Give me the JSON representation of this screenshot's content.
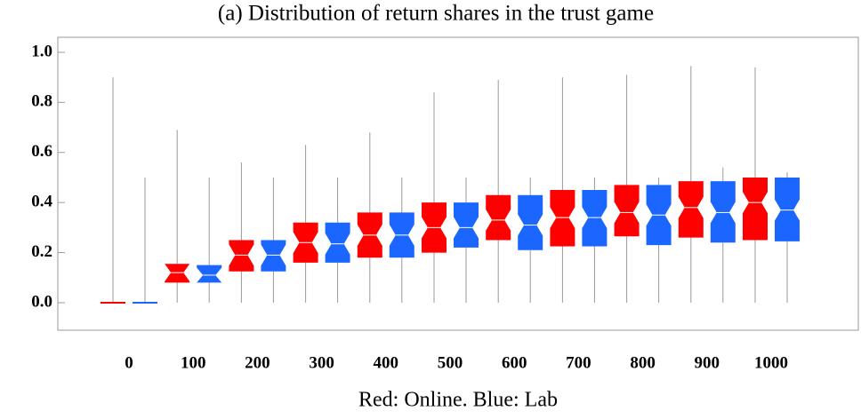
{
  "chart_data": {
    "type": "boxplot",
    "title": "(a) Distribution of return shares in the trust game",
    "x_label": "Red: Online. Blue: Lab",
    "categories": [
      "0",
      "100",
      "200",
      "300",
      "400",
      "500",
      "600",
      "700",
      "800",
      "900",
      "1000"
    ],
    "ylim": [
      -0.11,
      1.06
    ],
    "yticks": [
      {
        "value": 0,
        "label": "0.0"
      },
      {
        "value": 0.2,
        "label": "0.2"
      },
      {
        "value": 0.4,
        "label": "0.4"
      },
      {
        "value": 0.6,
        "label": "0.6"
      },
      {
        "value": 0.8,
        "label": "0.8"
      },
      {
        "value": 1,
        "label": "1.0"
      }
    ],
    "series": [
      {
        "color": "#ff0000",
        "min": [
          0,
          0,
          0,
          0,
          0,
          0,
          0,
          0,
          0,
          0,
          0
        ],
        "q1": [
          0,
          0.08,
          0.125,
          0.16,
          0.18,
          0.2,
          0.25,
          0.225,
          0.265,
          0.26,
          0.25
        ],
        "median": [
          0,
          0.12,
          0.19,
          0.24,
          0.27,
          0.3,
          0.33,
          0.34,
          0.36,
          0.38,
          0.4
        ],
        "q3": [
          0,
          0.155,
          0.25,
          0.32,
          0.36,
          0.4,
          0.43,
          0.45,
          0.47,
          0.485,
          0.5
        ],
        "max": [
          0.9,
          0.69,
          0.56,
          0.63,
          0.68,
          0.84,
          0.89,
          0.9,
          0.91,
          0.945,
          0.94
        ]
      },
      {
        "color": "#1a66ff",
        "min": [
          0,
          0,
          0,
          0,
          0,
          0,
          0,
          0,
          0,
          0,
          0
        ],
        "q1": [
          0,
          0.08,
          0.125,
          0.16,
          0.18,
          0.22,
          0.21,
          0.225,
          0.23,
          0.24,
          0.245
        ],
        "median": [
          0,
          0.11,
          0.19,
          0.235,
          0.27,
          0.3,
          0.31,
          0.34,
          0.35,
          0.36,
          0.37
        ],
        "q3": [
          0,
          0.15,
          0.25,
          0.32,
          0.36,
          0.4,
          0.43,
          0.45,
          0.47,
          0.485,
          0.5
        ],
        "max": [
          0.5,
          0.5,
          0.5,
          0.5,
          0.5,
          0.5,
          0.5,
          0.5,
          0.5,
          0.54,
          0.52
        ]
      }
    ]
  }
}
